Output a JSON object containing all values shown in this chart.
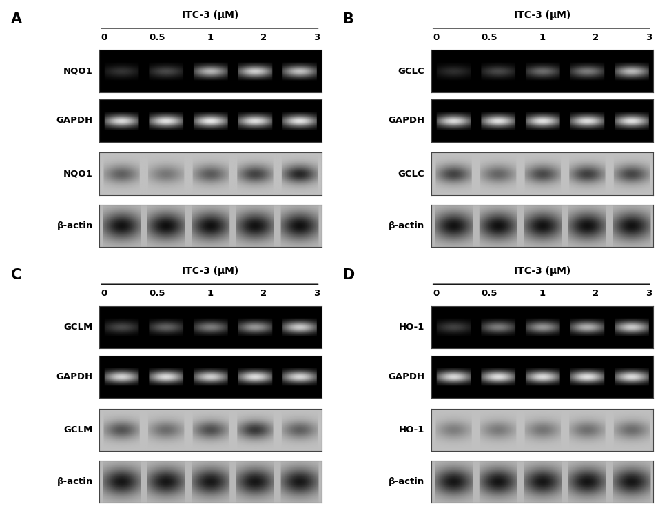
{
  "panels": [
    {
      "label": "A",
      "gene": "NQO1",
      "loading": "GAPDH",
      "protein": "NQO1",
      "control": "β-actin",
      "concentrations": [
        "0",
        "0.5",
        "1",
        "2",
        "3"
      ],
      "mrna_intensities": [
        0.2,
        0.28,
        0.7,
        0.8,
        0.75
      ],
      "gapdh_intensities": [
        0.85,
        0.88,
        0.9,
        0.87,
        0.88
      ],
      "protein_intensities": [
        0.55,
        0.42,
        0.58,
        0.72,
        0.88
      ],
      "actin_intensities": [
        0.9,
        0.92,
        0.91,
        0.9,
        0.91
      ]
    },
    {
      "label": "B",
      "gene": "GCLC",
      "loading": "GAPDH",
      "protein": "GCLC",
      "control": "β-actin",
      "concentrations": [
        "0",
        "0.5",
        "1",
        "2",
        "3"
      ],
      "mrna_intensities": [
        0.18,
        0.28,
        0.42,
        0.48,
        0.72
      ],
      "gapdh_intensities": [
        0.85,
        0.87,
        0.88,
        0.86,
        0.87
      ],
      "protein_intensities": [
        0.72,
        0.52,
        0.68,
        0.74,
        0.7
      ],
      "actin_intensities": [
        0.9,
        0.91,
        0.9,
        0.91,
        0.9
      ]
    },
    {
      "label": "C",
      "gene": "GCLM",
      "loading": "GAPDH",
      "protein": "GCLM",
      "control": "β-actin",
      "concentrations": [
        "0",
        "0.5",
        "1",
        "2",
        "3"
      ],
      "mrna_intensities": [
        0.28,
        0.38,
        0.48,
        0.58,
        0.78
      ],
      "gapdh_intensities": [
        0.82,
        0.85,
        0.8,
        0.86,
        0.83
      ],
      "protein_intensities": [
        0.62,
        0.48,
        0.65,
        0.78,
        0.55
      ],
      "actin_intensities": [
        0.88,
        0.88,
        0.87,
        0.88,
        0.87
      ]
    },
    {
      "label": "D",
      "gene": "HO-1",
      "loading": "GAPDH",
      "protein": "HO-1",
      "control": "β-actin",
      "concentrations": [
        "0",
        "0.5",
        "1",
        "2",
        "3"
      ],
      "mrna_intensities": [
        0.25,
        0.48,
        0.58,
        0.68,
        0.78
      ],
      "gapdh_intensities": [
        0.84,
        0.86,
        0.85,
        0.87,
        0.85
      ],
      "protein_intensities": [
        0.38,
        0.4,
        0.43,
        0.46,
        0.48
      ],
      "actin_intensities": [
        0.88,
        0.89,
        0.88,
        0.89,
        0.88
      ]
    }
  ],
  "itc3_label": "ITC-3 (μM)",
  "background_color": "#ffffff"
}
